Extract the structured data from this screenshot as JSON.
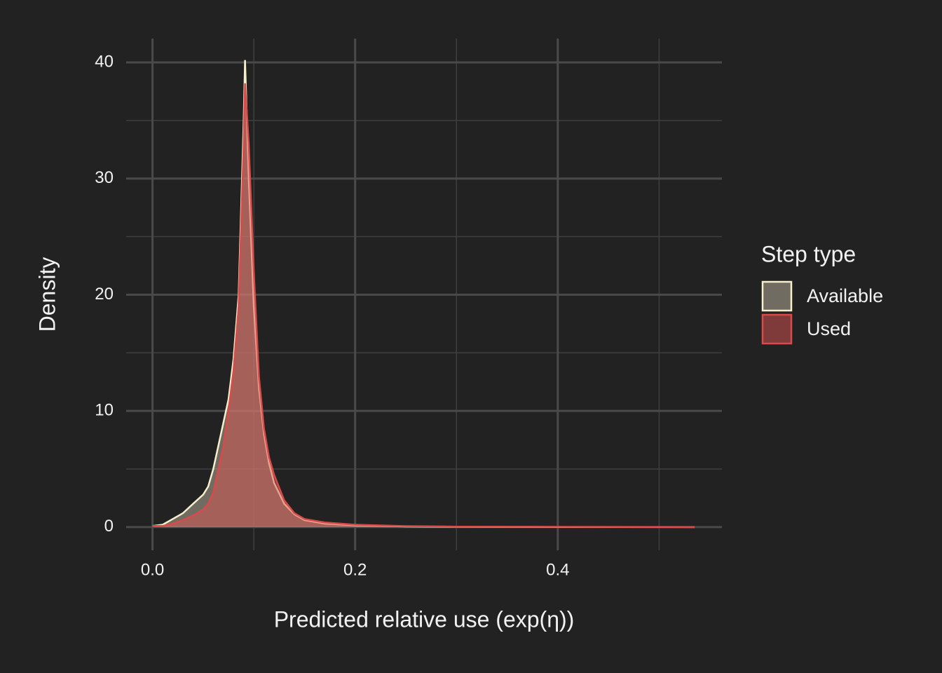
{
  "chart_data": {
    "type": "area",
    "xlabel": "Predicted relative use (exp(η))",
    "ylabel": "Density",
    "legend_title": "Step type",
    "legend": "right",
    "grid": true,
    "xlim": [
      -0.026,
      0.562
    ],
    "ylim": [
      -2.0,
      42.05
    ],
    "xticks": [
      {
        "value": 0,
        "label": "0.0"
      },
      {
        "value": 0.2,
        "label": "0.2"
      },
      {
        "value": 0.4,
        "label": "0.4"
      }
    ],
    "xminor_ticks": [
      0.1,
      0.3,
      0.5
    ],
    "yticks": [
      0,
      10,
      20,
      30,
      40
    ],
    "yminor_ticks": [
      5,
      15,
      25,
      35
    ],
    "x": [
      0,
      0.01,
      0.02,
      0.03,
      0.04,
      0.05,
      0.055,
      0.06,
      0.07,
      0.075,
      0.08,
      0.085,
      0.09,
      0.0913,
      0.095,
      0.1,
      0.105,
      0.11,
      0.115,
      0.12,
      0.13,
      0.14,
      0.15,
      0.17,
      0.2,
      0.25,
      0.3,
      0.4,
      0.535
    ],
    "series": [
      {
        "name": "Available",
        "color": "#bdb6a2",
        "line_color": "#f5efcb",
        "values": [
          0.1,
          0.2,
          0.7,
          1.2,
          2.0,
          2.8,
          3.5,
          5,
          9,
          11,
          14.5,
          20,
          35,
          40.2,
          30,
          19,
          12,
          8,
          5.5,
          3.8,
          2,
          1.1,
          0.6,
          0.3,
          0.15,
          0.05,
          0.02,
          0.01,
          0
        ]
      },
      {
        "name": "Used",
        "color": "#d9534f",
        "line_color": "#d94a4a",
        "values": [
          0.1,
          0.1,
          0.3,
          0.6,
          1.0,
          1.5,
          2.0,
          3,
          7,
          10,
          13.5,
          19,
          33,
          38.2,
          33,
          22,
          13,
          8.5,
          6,
          4.5,
          2.3,
          1.2,
          0.7,
          0.4,
          0.2,
          0.08,
          0.04,
          0.02,
          0.01
        ]
      }
    ]
  }
}
